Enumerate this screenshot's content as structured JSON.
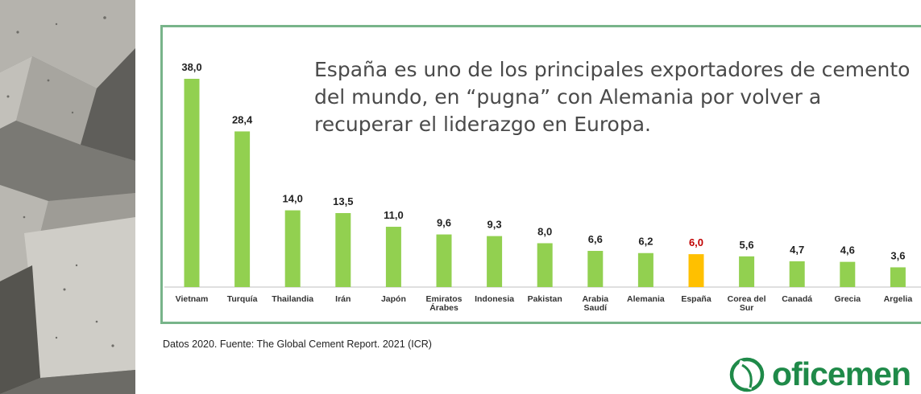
{
  "title": "España es uno de los principales exportadores de cemento del mundo, en “pugna” con Alemania por volver a recuperar el liderazgo en Europa.",
  "source": "Datos 2020. Fuente:  The Global Cement Report. 2021 (ICR)",
  "logo": {
    "text": "oficemen"
  },
  "colors": {
    "bar": "#92d050",
    "highlight_bar": "#ffc000",
    "highlight_label": "#c00000",
    "frame": "#78b48a",
    "logo": "#1f8a49"
  },
  "chart_data": {
    "type": "bar",
    "categories": [
      "Vietnam",
      "Turquía",
      "Thailandia",
      "Irán",
      "Japón",
      "Emiratos Árabes",
      "Indonesia",
      "Pakistan",
      "Arabia Saudí",
      "Alemania",
      "España",
      "Corea del Sur",
      "Canadá",
      "Grecia",
      "Argelia"
    ],
    "category_lines": [
      [
        "Vietnam"
      ],
      [
        "Turquía"
      ],
      [
        "Thailandia"
      ],
      [
        "Irán"
      ],
      [
        "Japón"
      ],
      [
        "Emiratos",
        "Árabes"
      ],
      [
        "Indonesia"
      ],
      [
        "Pakistan"
      ],
      [
        "Arabia",
        "Saudí"
      ],
      [
        "Alemania"
      ],
      [
        "España"
      ],
      [
        "Corea del",
        "Sur"
      ],
      [
        "Canadá"
      ],
      [
        "Grecia"
      ],
      [
        "Argelia"
      ]
    ],
    "values": [
      38.0,
      28.4,
      14.0,
      13.5,
      11.0,
      9.6,
      9.3,
      8.0,
      6.6,
      6.2,
      6.0,
      5.6,
      4.7,
      4.6,
      3.6
    ],
    "value_labels": [
      "38,0",
      "28,4",
      "14,0",
      "13,5",
      "11,0",
      "9,6",
      "9,3",
      "8,0",
      "6,6",
      "6,2",
      "6,0",
      "5,6",
      "4,7",
      "4,6",
      "3,6"
    ],
    "highlight": "España",
    "ylim": [
      0,
      38.0
    ],
    "grid": false,
    "legend": "none"
  }
}
